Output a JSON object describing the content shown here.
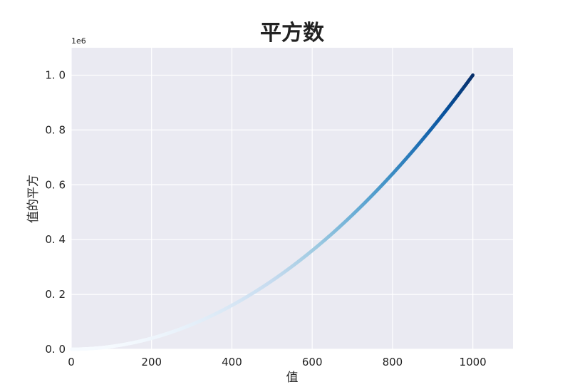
{
  "chart_data": {
    "type": "scatter",
    "title": "平方数",
    "xlabel": "值",
    "ylabel": "值的平方",
    "y_offset_label": "1e6",
    "xlim": [
      0,
      1100
    ],
    "ylim": [
      0,
      1.1
    ],
    "x_ticks": [
      0,
      200,
      400,
      600,
      800,
      1000
    ],
    "x_tick_labels": [
      "0",
      "200",
      "400",
      "600",
      "800",
      "1000"
    ],
    "y_ticks": [
      0,
      0.2,
      0.4,
      0.6,
      0.8,
      1.0
    ],
    "y_tick_labels": [
      "0. 0",
      "0. 2",
      "0. 4",
      "0. 6",
      "0. 8",
      "1. 0"
    ],
    "grid": true,
    "colormap": "Blues",
    "series": [
      {
        "x_start": 1,
        "x_end": 1000,
        "function": "y = x^2",
        "points": [
          [
            1,
            1e-06
          ],
          [
            100,
            0.01
          ],
          [
            200,
            0.04
          ],
          [
            300,
            0.09
          ],
          [
            400,
            0.16
          ],
          [
            500,
            0.25
          ],
          [
            600,
            0.36
          ],
          [
            700,
            0.49
          ],
          [
            800,
            0.64
          ],
          [
            900,
            0.81
          ],
          [
            1000,
            1.0
          ]
        ]
      }
    ]
  },
  "colors": {
    "plot_background": "#eaeaf2",
    "grid": "#ffffff",
    "colormap_stops": [
      "#f7fbff",
      "#deebf7",
      "#c6dbef",
      "#9ecae1",
      "#6baed6",
      "#4292c6",
      "#2171b5",
      "#08519c",
      "#08306b"
    ]
  }
}
